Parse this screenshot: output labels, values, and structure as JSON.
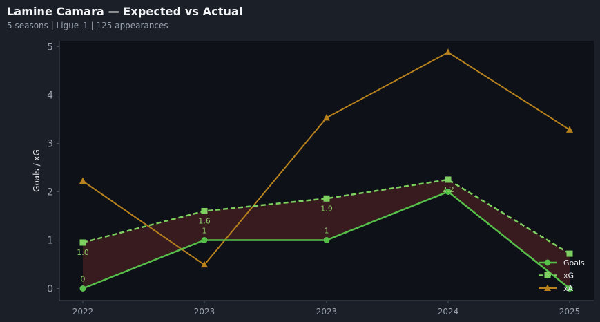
{
  "header": {
    "title": "Lamine Camara — Expected vs Actual",
    "subtitle": "5 seasons | Ligue_1 | 125 appearances"
  },
  "chart_data": {
    "type": "line",
    "title": "Lamine Camara — Expected vs Actual",
    "subtitle": "5 seasons | Ligue_1 | 125 appearances",
    "xlabel": "",
    "ylabel": "Goals / xG",
    "categories": [
      "2022",
      "2023",
      "2023",
      "2024",
      "2025"
    ],
    "ylim": [
      -0.25,
      5.12
    ],
    "yticks": [
      0,
      1,
      2,
      3,
      4,
      5
    ],
    "grid": false,
    "legend_position": "bottom-right",
    "series": [
      {
        "name": "Goals",
        "values": [
          0,
          1,
          1,
          2,
          0
        ],
        "labels": [
          "0",
          "1",
          "1",
          "",
          ""
        ],
        "color": "#57c04a",
        "style": "solid",
        "marker": "circle"
      },
      {
        "name": "xG",
        "values": [
          0.95,
          1.6,
          1.86,
          2.25,
          0.72
        ],
        "labels": [
          "1.0",
          "1.6",
          "1.9",
          "2.2",
          ""
        ],
        "color": "#7ed060",
        "style": "dashed",
        "marker": "square"
      },
      {
        "name": "xA",
        "values": [
          2.22,
          0.49,
          3.53,
          4.88,
          3.28
        ],
        "labels": [],
        "color": "#b8821e",
        "style": "solid",
        "marker": "triangle"
      }
    ],
    "fill_between": {
      "series": [
        "Goals",
        "xG"
      ],
      "color": "#3a1c1f"
    },
    "colors": {
      "background": "#1b1f27",
      "plot_background": "#0e1117",
      "axis": "#4a505a",
      "tick_text": "#9aa2ad"
    }
  }
}
